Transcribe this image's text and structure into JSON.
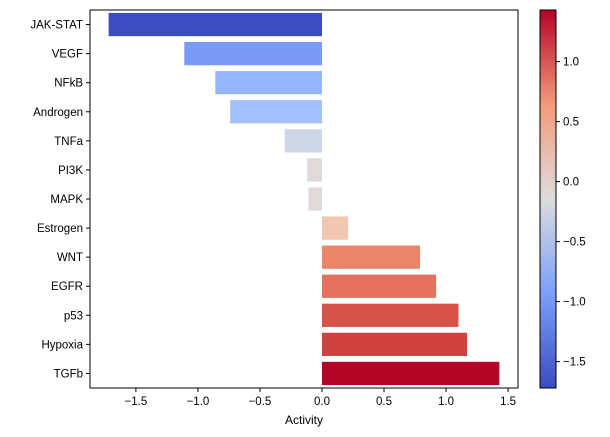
{
  "chart_data": {
    "type": "bar",
    "orientation": "horizontal",
    "categories": [
      "JAK-STAT",
      "VEGF",
      "NFkB",
      "Androgen",
      "TNFa",
      "PI3K",
      "MAPK",
      "Estrogen",
      "WNT",
      "EGFR",
      "p53",
      "Hypoxia",
      "TGFb"
    ],
    "values": [
      -1.72,
      -1.11,
      -0.86,
      -0.74,
      -0.3,
      -0.12,
      -0.11,
      0.21,
      0.79,
      0.92,
      1.1,
      1.17,
      1.43
    ],
    "title": "",
    "xlabel": "Activity",
    "ylabel": "",
    "xlim": [
      -1.87,
      1.58
    ],
    "xticks": [
      -1.5,
      -1.0,
      -0.5,
      0.0,
      0.5,
      1.0,
      1.5
    ],
    "xtick_labels": [
      "−1.5",
      "−1.0",
      "−0.5",
      "0.0",
      "0.5",
      "1.0",
      "1.5"
    ],
    "grid": false,
    "colormap": "coolwarm",
    "colorbar": {
      "range": [
        -1.72,
        1.43
      ],
      "ticks": [
        1.0,
        0.5,
        0.0,
        -0.5,
        -1.0,
        -1.5
      ],
      "tick_labels": [
        "1.0",
        "0.5",
        "0.0",
        "−0.5",
        "−1.0",
        "−1.5"
      ]
    }
  }
}
